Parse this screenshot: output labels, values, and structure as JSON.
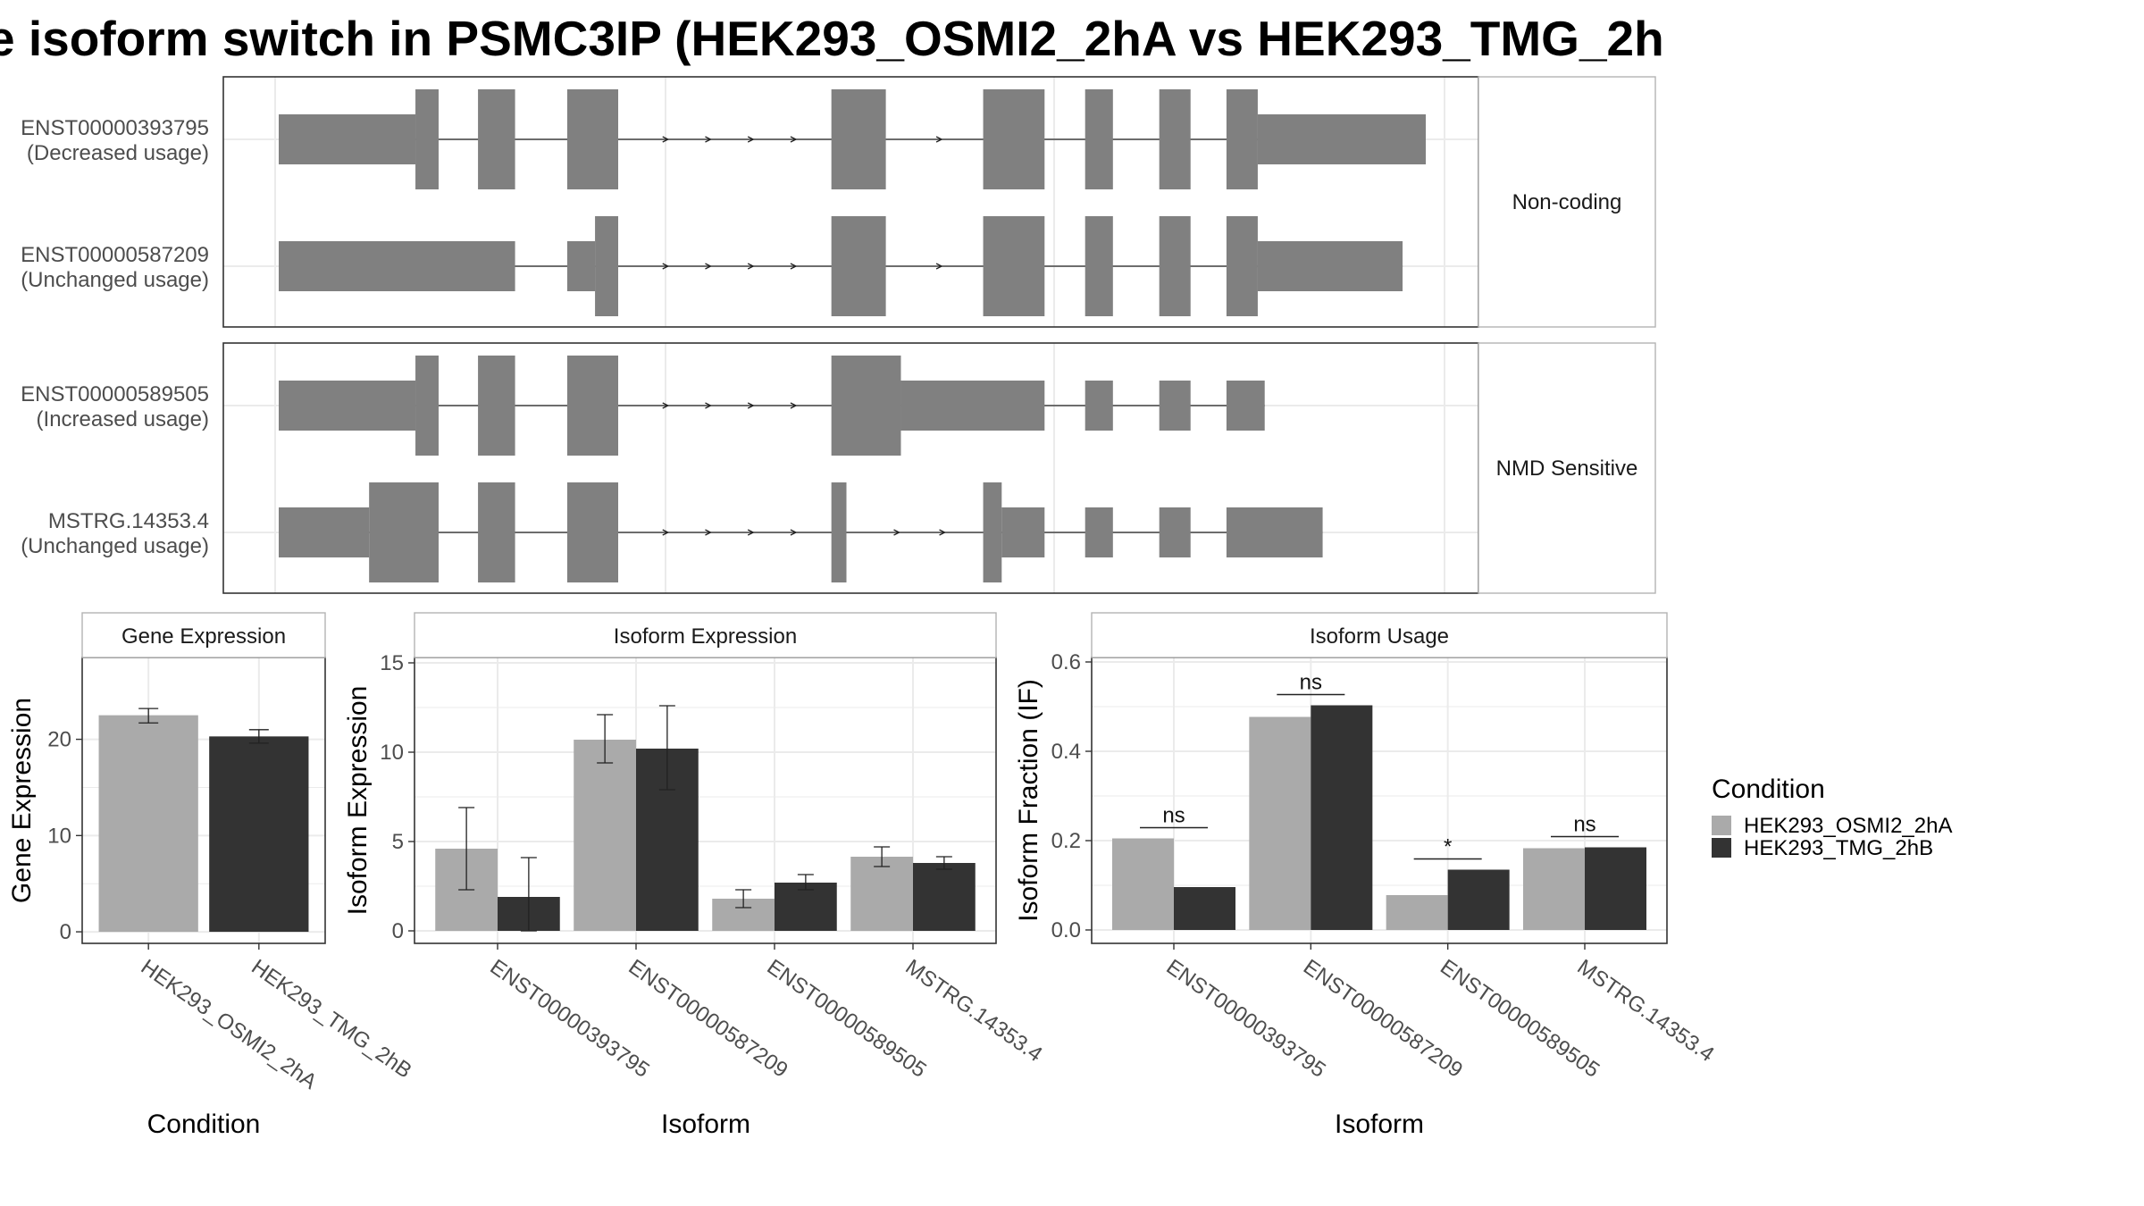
{
  "title": "e isoform switch in PSMC3IP (HEK293_OSMI2_2hA vs HEK293_TMG_2h",
  "structure": {
    "groups": [
      {
        "label": "Non-coding",
        "isoforms": [
          {
            "id": "ENST00000393795",
            "usage": "(Decreased usage)",
            "exons": [
              {
                "s": 0.0,
                "e": 11.8,
                "h": "s"
              },
              {
                "s": 11.8,
                "e": 13.8,
                "h": "t"
              },
              {
                "s": 17.2,
                "e": 20.4,
                "h": "t"
              },
              {
                "s": 24.9,
                "e": 29.3,
                "h": "t"
              },
              {
                "s": 47.7,
                "e": 52.4,
                "h": "t"
              },
              {
                "s": 60.8,
                "e": 66.1,
                "h": "t"
              },
              {
                "s": 69.6,
                "e": 72.0,
                "h": "t"
              },
              {
                "s": 76.0,
                "e": 78.7,
                "h": "t"
              },
              {
                "s": 81.8,
                "e": 84.5,
                "h": "t"
              },
              {
                "s": 84.5,
                "e": 99.0,
                "h": "s"
              }
            ]
          },
          {
            "id": "ENST00000587209",
            "usage": "(Unchanged usage)",
            "exons": [
              {
                "s": 0.0,
                "e": 20.4,
                "h": "s"
              },
              {
                "s": 24.9,
                "e": 27.3,
                "h": "s"
              },
              {
                "s": 27.3,
                "e": 29.3,
                "h": "t"
              },
              {
                "s": 47.7,
                "e": 52.4,
                "h": "t"
              },
              {
                "s": 60.8,
                "e": 66.1,
                "h": "t"
              },
              {
                "s": 69.6,
                "e": 72.0,
                "h": "t"
              },
              {
                "s": 76.0,
                "e": 78.7,
                "h": "t"
              },
              {
                "s": 81.8,
                "e": 84.5,
                "h": "t"
              },
              {
                "s": 84.5,
                "e": 97.0,
                "h": "s"
              }
            ]
          }
        ]
      },
      {
        "label": "NMD Sensitive",
        "isoforms": [
          {
            "id": "ENST00000589505",
            "usage": "(Increased usage)",
            "exons": [
              {
                "s": 0.0,
                "e": 11.8,
                "h": "s"
              },
              {
                "s": 11.8,
                "e": 13.8,
                "h": "t"
              },
              {
                "s": 17.2,
                "e": 20.4,
                "h": "t"
              },
              {
                "s": 24.9,
                "e": 29.3,
                "h": "t"
              },
              {
                "s": 47.7,
                "e": 53.7,
                "h": "t"
              },
              {
                "s": 53.7,
                "e": 66.1,
                "h": "s"
              },
              {
                "s": 69.6,
                "e": 72.0,
                "h": "s"
              },
              {
                "s": 76.0,
                "e": 78.7,
                "h": "s"
              },
              {
                "s": 81.8,
                "e": 85.1,
                "h": "s"
              }
            ]
          },
          {
            "id": "MSTRG.14353.4",
            "usage": "(Unchanged usage)",
            "exons": [
              {
                "s": 0.0,
                "e": 7.8,
                "h": "s"
              },
              {
                "s": 7.8,
                "e": 13.8,
                "h": "t"
              },
              {
                "s": 17.2,
                "e": 20.4,
                "h": "t"
              },
              {
                "s": 24.9,
                "e": 29.3,
                "h": "t"
              },
              {
                "s": 47.7,
                "e": 49.0,
                "h": "t"
              },
              {
                "s": 60.8,
                "e": 62.4,
                "h": "t"
              },
              {
                "s": 62.4,
                "e": 66.1,
                "h": "s"
              },
              {
                "s": 69.6,
                "e": 72.0,
                "h": "s"
              },
              {
                "s": 76.0,
                "e": 78.7,
                "h": "s"
              },
              {
                "s": 81.8,
                "e": 90.1,
                "h": "s"
              }
            ]
          }
        ]
      }
    ]
  },
  "chart_data": [
    {
      "type": "bar",
      "panel": "Gene Expression",
      "categories": [
        "HEK293_OSMI2_2hA",
        "HEK293_TMG_2hB"
      ],
      "values": [
        22.5,
        20.3
      ],
      "errors": [
        [
          21.7,
          23.2
        ],
        [
          19.6,
          21.0
        ]
      ],
      "xlabel": "Condition",
      "ylabel": "Gene Expression",
      "yticks": [
        0,
        10,
        20
      ],
      "ylim": [
        -1.2,
        28.5
      ]
    },
    {
      "type": "bar",
      "panel": "Isoform Expression",
      "categories": [
        "ENST00000393795",
        "ENST00000587209",
        "ENST00000589505",
        "MSTRG.14353.4"
      ],
      "series": [
        {
          "name": "HEK293_OSMI2_2hA",
          "values": [
            4.6,
            10.7,
            1.8,
            4.15
          ],
          "errors": [
            [
              2.3,
              6.9
            ],
            [
              9.4,
              12.1
            ],
            [
              1.3,
              2.3
            ],
            [
              3.6,
              4.7
            ]
          ]
        },
        {
          "name": "HEK293_TMG_2hB",
          "values": [
            1.9,
            10.2,
            2.7,
            3.8
          ],
          "errors": [
            [
              0.0,
              4.1
            ],
            [
              7.9,
              12.6
            ],
            [
              2.3,
              3.15
            ],
            [
              3.45,
              4.15
            ]
          ]
        }
      ],
      "xlabel": "Isoform",
      "ylabel": "Isoform Expression",
      "yticks": [
        0,
        5,
        10,
        15
      ],
      "ylim": [
        -0.7,
        15.3
      ]
    },
    {
      "type": "bar",
      "panel": "Isoform Usage",
      "categories": [
        "ENST00000393795",
        "ENST00000587209",
        "ENST00000589505",
        "MSTRG.14353.4"
      ],
      "series": [
        {
          "name": "HEK293_OSMI2_2hA",
          "values": [
            0.205,
            0.477,
            0.078,
            0.183
          ]
        },
        {
          "name": "HEK293_TMG_2hB",
          "values": [
            0.096,
            0.503,
            0.135,
            0.185
          ]
        }
      ],
      "annotations": [
        "ns",
        "ns",
        "*",
        "ns"
      ],
      "xlabel": "Isoform",
      "ylabel": "Isoform Fraction (IF)",
      "yticks": [
        0.0,
        0.2,
        0.4,
        0.6
      ],
      "ylim": [
        -0.03,
        0.61
      ]
    }
  ],
  "legend": {
    "title": "Condition",
    "items": [
      {
        "name": "HEK293_OSMI2_2hA",
        "color": "#AAAAAA"
      },
      {
        "name": "HEK293_TMG_2hB",
        "color": "#333333"
      }
    ]
  },
  "colors": {
    "exon": "#808080",
    "light": "#AAAAAA",
    "dark": "#333333",
    "grid": "#EBEBEB",
    "axis_text": "#4D4D4D"
  }
}
